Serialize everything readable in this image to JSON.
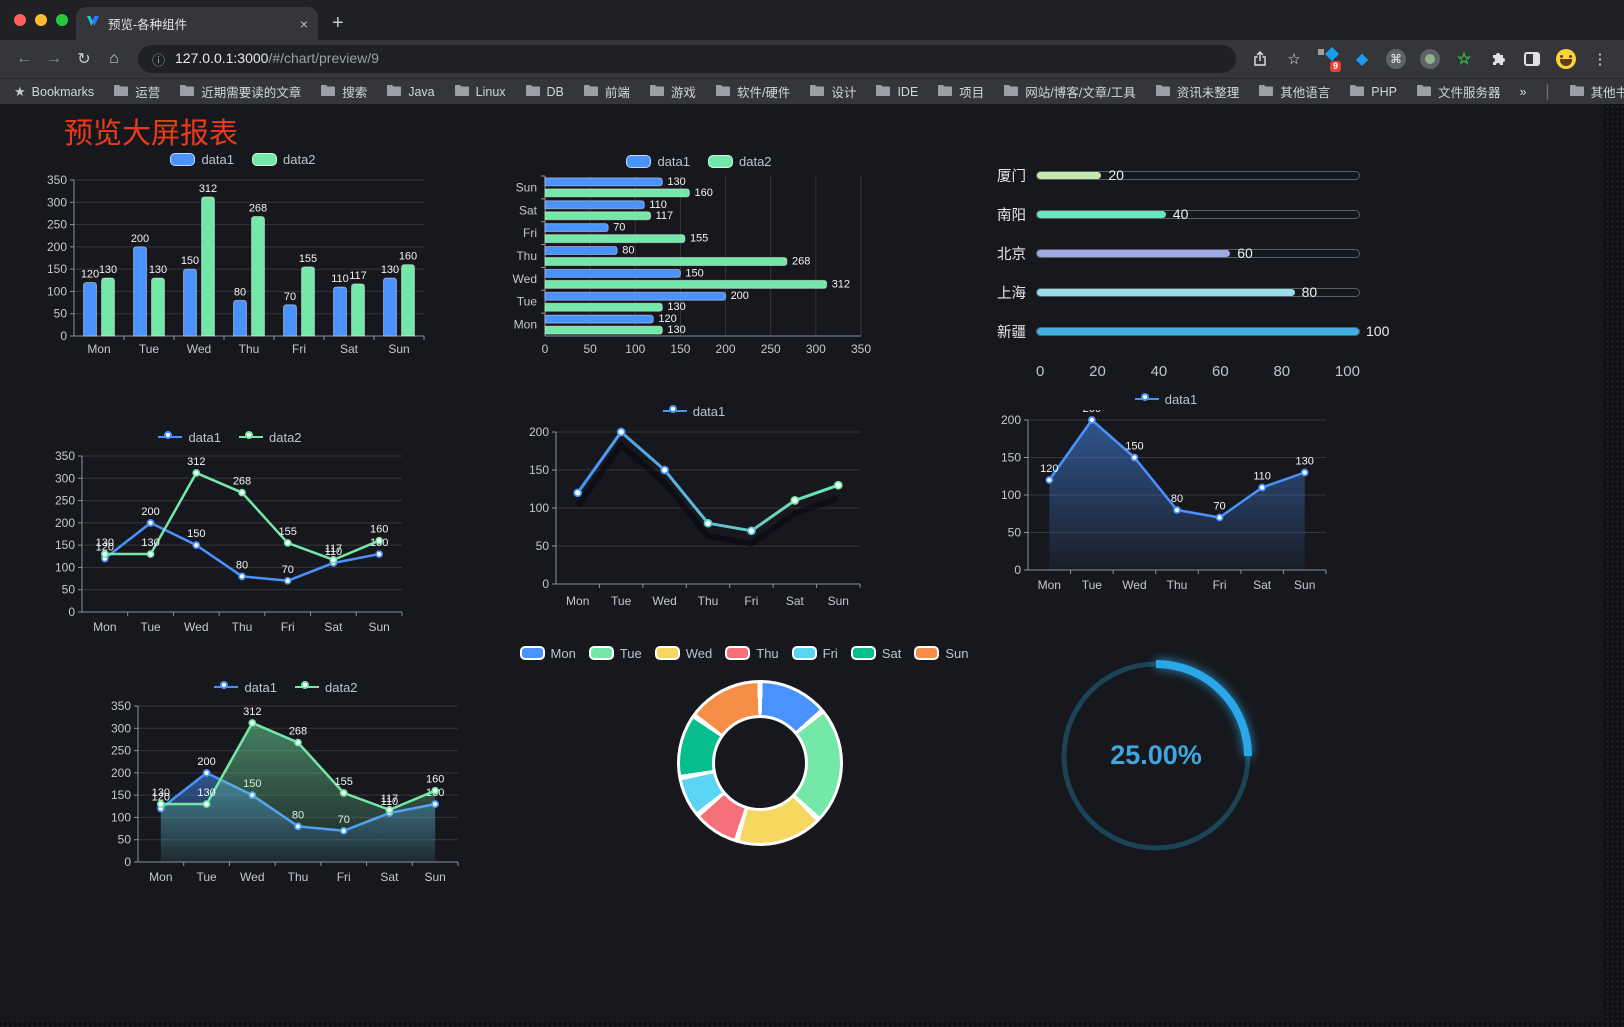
{
  "browser": {
    "tab": {
      "title": "预览-各种组件",
      "close": "×",
      "new_tab": "+"
    },
    "address": {
      "host": "127.0.0.1:3000",
      "path": "/#/chart/preview/9"
    },
    "icons": {
      "back": "←",
      "forward": "→",
      "reload": "↻",
      "home": "⌂",
      "info": "ⓘ",
      "star": "☆",
      "menu": "⋮",
      "gem": "◆",
      "command": "⌘",
      "green_star": "☆"
    },
    "extensions_badge": "9",
    "bookmarks": {
      "star": "★",
      "label": "Bookmarks",
      "folders": [
        "运营",
        "近期需要读的文章",
        "搜索",
        "Java",
        "Linux",
        "DB",
        "前端",
        "游戏",
        "软件/硬件",
        "设计",
        "IDE",
        "项目",
        "网站/博客/文章/工具",
        "资讯未整理",
        "其他语言",
        "PHP",
        "文件服务器"
      ],
      "overflow": "»",
      "divider": "|",
      "other": "其他书签"
    }
  },
  "page": {
    "title": "预览大屏报表",
    "title_color": "#ee3a1c",
    "background": "#17181d"
  },
  "palette": {
    "data1_blue": "#4992ff",
    "data2_green": "#74e8a8"
  },
  "chart_data": [
    {
      "id": "grouped_bar",
      "type": "bar",
      "title": "",
      "categories": [
        "Mon",
        "Tue",
        "Wed",
        "Thu",
        "Fri",
        "Sat",
        "Sun"
      ],
      "series": [
        {
          "name": "data1",
          "color": "#4992ff",
          "values": [
            120,
            200,
            150,
            80,
            70,
            110,
            130
          ]
        },
        {
          "name": "data2",
          "color": "#74e8a8",
          "values": [
            130,
            130,
            312,
            268,
            155,
            117,
            160
          ]
        }
      ],
      "ylim": [
        0,
        350
      ],
      "ystep": 50,
      "legend_position": "top",
      "grid": true,
      "value_labels": true
    },
    {
      "id": "horizontal_bar",
      "type": "bar",
      "orientation": "horizontal",
      "title": "",
      "categories_top_to_bottom": [
        "Sun",
        "Sat",
        "Fri",
        "Thu",
        "Wed",
        "Tue",
        "Mon"
      ],
      "series": [
        {
          "name": "data1",
          "color": "#4992ff",
          "values_top_to_bottom": [
            130,
            110,
            70,
            80,
            150,
            200,
            120
          ]
        },
        {
          "name": "data2",
          "color": "#74e8a8",
          "values_top_to_bottom": [
            160,
            117,
            155,
            268,
            312,
            130,
            130
          ]
        }
      ],
      "xlim": [
        0,
        350
      ],
      "xstep": 50,
      "legend_position": "top",
      "grid": true,
      "value_labels": true
    },
    {
      "id": "city_progress",
      "type": "bar",
      "subtype": "progress-list",
      "title": "",
      "rows": [
        {
          "label": "厦门",
          "value": 20,
          "color": "#c4ebad"
        },
        {
          "label": "南阳",
          "value": 40,
          "color": "#6be6c1"
        },
        {
          "label": "北京",
          "value": 60,
          "color": "#a0a7e6"
        },
        {
          "label": "上海",
          "value": 80,
          "color": "#96dee8"
        },
        {
          "label": "新疆",
          "value": 100,
          "color": "#3fb1e3"
        }
      ],
      "xlim": [
        0,
        100
      ],
      "xticks": [
        0,
        20,
        40,
        60,
        80,
        100
      ]
    },
    {
      "id": "line_two",
      "type": "line",
      "title": "",
      "categories": [
        "Mon",
        "Tue",
        "Wed",
        "Thu",
        "Fri",
        "Sat",
        "Sun"
      ],
      "series": [
        {
          "name": "data1",
          "color": "#4992ff",
          "values": [
            120,
            200,
            150,
            80,
            70,
            110,
            130
          ]
        },
        {
          "name": "data2",
          "color": "#74e8a8",
          "values": [
            130,
            130,
            312,
            268,
            155,
            117,
            160
          ]
        }
      ],
      "ylim": [
        0,
        350
      ],
      "ystep": 50,
      "legend_position": "top",
      "value_labels": true
    },
    {
      "id": "line_gradient",
      "type": "line",
      "subtype": "gradient-stroke",
      "title": "",
      "categories": [
        "Mon",
        "Tue",
        "Wed",
        "Thu",
        "Fri",
        "Sat",
        "Sun"
      ],
      "series": [
        {
          "name": "data1",
          "gradient": [
            "#4992ff",
            "#74e8a8"
          ],
          "values": [
            120,
            200,
            150,
            80,
            70,
            110,
            130
          ]
        }
      ],
      "ylim": [
        0,
        200
      ],
      "ystep": 50,
      "legend_position": "top",
      "value_labels": false
    },
    {
      "id": "area_single",
      "type": "area",
      "title": "",
      "categories": [
        "Mon",
        "Tue",
        "Wed",
        "Thu",
        "Fri",
        "Sat",
        "Sun"
      ],
      "series": [
        {
          "name": "data1",
          "color": "#4992ff",
          "values": [
            120,
            200,
            150,
            80,
            70,
            110,
            130
          ]
        }
      ],
      "ylim": [
        0,
        200
      ],
      "ystep": 50,
      "legend_position": "top",
      "value_labels": true
    },
    {
      "id": "area_two",
      "type": "area",
      "title": "",
      "categories": [
        "Mon",
        "Tue",
        "Wed",
        "Thu",
        "Fri",
        "Sat",
        "Sun"
      ],
      "series": [
        {
          "name": "data1",
          "color": "#4992ff",
          "values": [
            120,
            200,
            150,
            80,
            70,
            110,
            130
          ]
        },
        {
          "name": "data2",
          "color": "#74e8a8",
          "values": [
            130,
            130,
            312,
            268,
            155,
            117,
            160
          ]
        }
      ],
      "ylim": [
        0,
        350
      ],
      "ystep": 50,
      "legend_position": "top",
      "value_labels": true
    },
    {
      "id": "donut_week",
      "type": "pie",
      "subtype": "donut",
      "title": "",
      "legend_position": "top",
      "slices": [
        {
          "label": "Mon",
          "value": 120,
          "color": "#4992ff"
        },
        {
          "label": "Tue",
          "value": 200,
          "color": "#74e8a8"
        },
        {
          "label": "Wed",
          "value": 150,
          "color": "#f6d860"
        },
        {
          "label": "Thu",
          "value": 80,
          "color": "#f6707a"
        },
        {
          "label": "Fri",
          "value": 70,
          "color": "#59d4f2"
        },
        {
          "label": "Sat",
          "value": 110,
          "color": "#06bd8d"
        },
        {
          "label": "Sun",
          "value": 130,
          "color": "#f68e47"
        }
      ]
    },
    {
      "id": "gauge_percent",
      "type": "gauge",
      "title": "",
      "value": 25,
      "label": "25.00%",
      "max": 100,
      "arc_color": "#2aa7e8",
      "track_color": "#1d4456",
      "text_color": "#3fa6e0"
    }
  ]
}
